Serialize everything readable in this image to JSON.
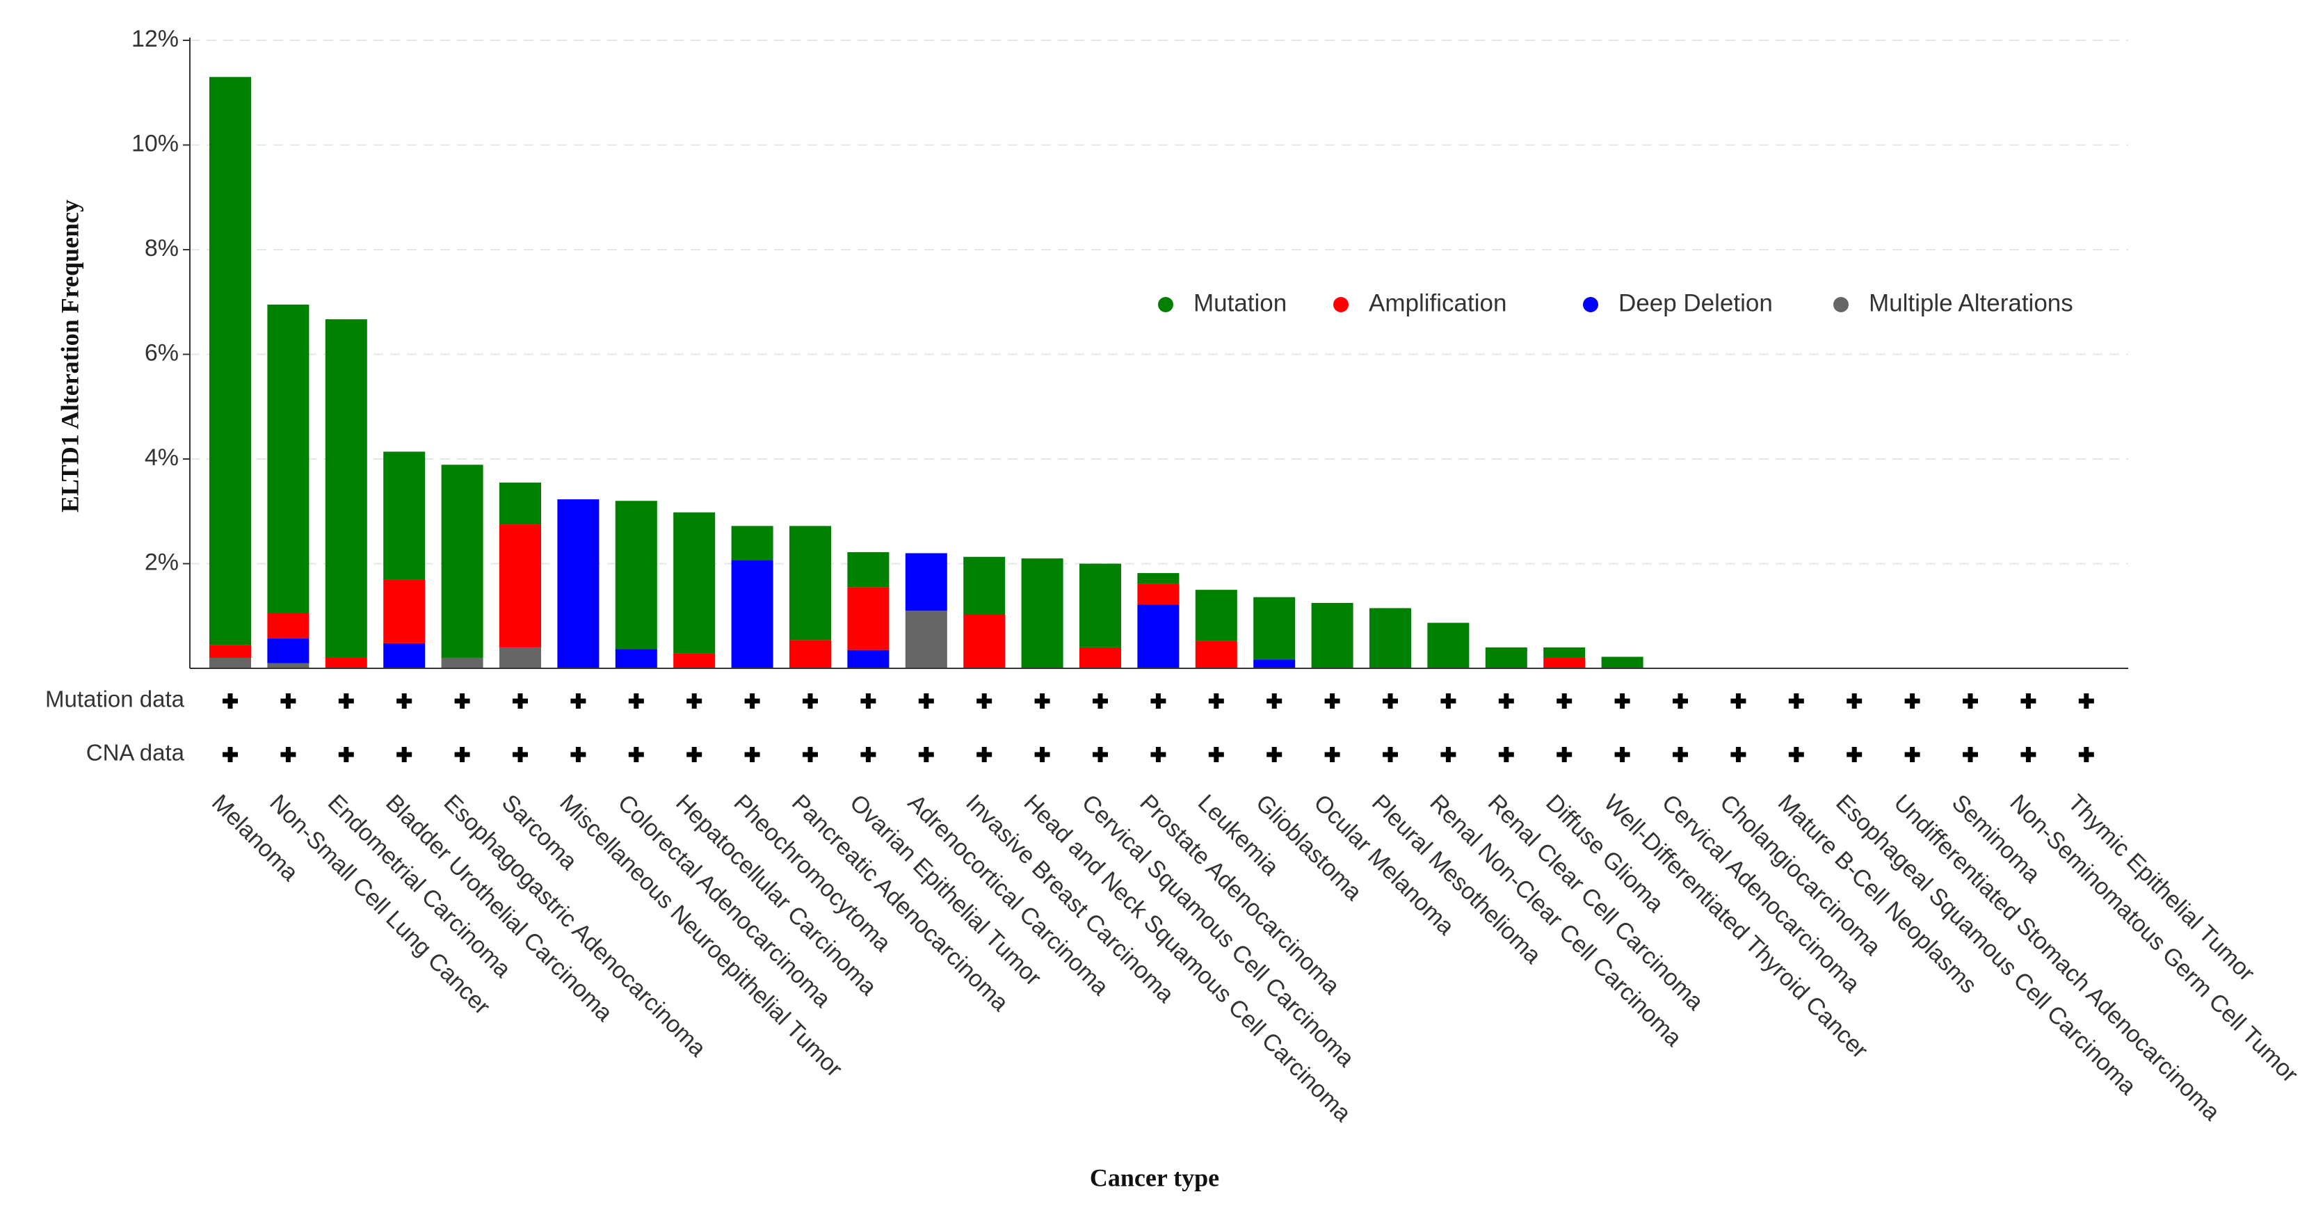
{
  "chart_data": {
    "type": "stacked-bar",
    "y_label": "ELTD1 Alteration Frequency",
    "x_label": "Cancer type",
    "categories": [
      "Melanoma",
      "Non-Small Cell Lung Cancer",
      "Endometrial Carcinoma",
      "Bladder Urothelial Carcinoma",
      "Esophagogastric Adenocarcinoma",
      "Sarcoma",
      "Miscellaneous Neuroepithelial Tumor",
      "Colorectal Adenocarcinoma",
      "Hepatocellular Carcinoma",
      "Pheochromocytoma",
      "Pancreatic Adenocarcinoma",
      "Ovarian Epithelial Tumor",
      "Adrenocortical Carcinoma",
      "Invasive Breast Carcinoma",
      "Head and Neck Squamous Cell Carcinoma",
      "Cervical Squamous Cell Carcinoma",
      "Prostate Adenocarcinoma",
      "Leukemia",
      "Glioblastoma",
      "Ocular Melanoma",
      "Pleural Mesothelioma",
      "Renal Non-Clear Cell Carcinoma",
      "Renal Clear Cell Carcinoma",
      "Diffuse Glioma",
      "Well-Differentiated Thyroid Cancer",
      "Cervical Adenocarcinoma",
      "Cholangiocarcinoma",
      "Mature B-Cell Neoplasms",
      "Esophageal Squamous Cell Carcinoma",
      "Undifferentiated Stomach Adenocarcinoma",
      "Seminoma",
      "Non-Seminomatous Germ Cell Tumor",
      "Thymic Epithelial Tumor"
    ],
    "series": [
      {
        "name": "Mutation",
        "color": "#008000",
        "values": [
          10.85,
          5.9,
          6.47,
          2.44,
          3.69,
          0.8,
          0,
          2.83,
          2.7,
          0.65,
          2.18,
          0.67,
          0,
          1.1,
          2.1,
          1.6,
          0.2,
          0.98,
          1.19,
          1.25,
          1.15,
          0.87,
          0.4,
          0.2,
          0.22,
          0,
          0,
          0,
          0,
          0,
          0,
          0,
          0
        ]
      },
      {
        "name": "Amplification",
        "color": "#ff0000",
        "values": [
          0.25,
          0.48,
          0.2,
          1.22,
          0,
          2.35,
          0,
          0,
          0.28,
          0,
          0.54,
          1.2,
          0,
          1.03,
          0,
          0.4,
          0.4,
          0.52,
          0,
          0,
          0,
          0,
          0,
          0.2,
          0,
          0,
          0,
          0,
          0,
          0,
          0,
          0,
          0
        ]
      },
      {
        "name": "Deep Deletion",
        "color": "#0000ff",
        "values": [
          0,
          0.47,
          0,
          0.48,
          0,
          0,
          3.23,
          0.37,
          0,
          2.07,
          0,
          0.35,
          1.1,
          0,
          0,
          0,
          1.22,
          0,
          0.17,
          0,
          0,
          0,
          0,
          0,
          0,
          0,
          0,
          0,
          0,
          0,
          0,
          0,
          0
        ]
      },
      {
        "name": "Multiple Alterations",
        "color": "#666666",
        "values": [
          0.2,
          0.1,
          0,
          0,
          0.2,
          0.4,
          0,
          0,
          0,
          0,
          0,
          0,
          1.1,
          0,
          0,
          0,
          0,
          0,
          0,
          0,
          0,
          0,
          0,
          0,
          0,
          0,
          0,
          0,
          0,
          0,
          0,
          0,
          0
        ]
      }
    ],
    "profile_rows": [
      "Mutation data",
      "CNA data"
    ],
    "ylim": [
      0,
      12
    ],
    "yticks": [
      {
        "value": 2,
        "label": "2%"
      },
      {
        "value": 4,
        "label": "4%"
      },
      {
        "value": 6,
        "label": "6%"
      },
      {
        "value": 8,
        "label": "8%"
      },
      {
        "value": 10,
        "label": "10%"
      },
      {
        "value": 12,
        "label": "12%"
      }
    ],
    "grid": true
  }
}
